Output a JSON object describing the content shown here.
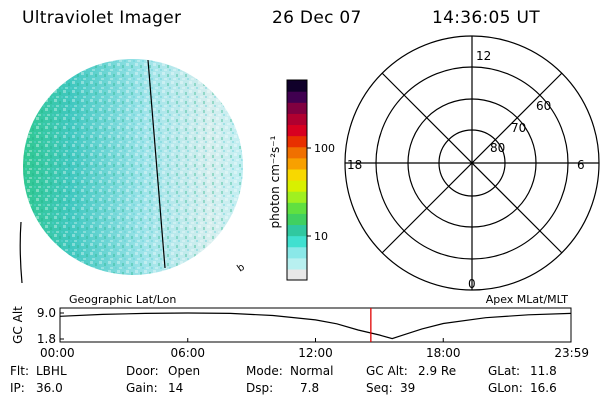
{
  "header": {
    "title": "Ultraviolet Imager",
    "date": "26 Dec 07",
    "time": "14:36:05 UT"
  },
  "colorbar": {
    "unit_label": "photon cm⁻²s⁻¹",
    "tick_high": "100",
    "tick_low": "10",
    "colors": [
      "#e8e8e8",
      "#b8f0f0",
      "#8ae8e8",
      "#40e0d0",
      "#30c8a0",
      "#40d060",
      "#60e040",
      "#a0f020",
      "#d8f000",
      "#f8d800",
      "#f8a000",
      "#f07000",
      "#e83000",
      "#d80020",
      "#b00030",
      "#800040",
      "#400050",
      "#10002a"
    ]
  },
  "left_panel": {
    "projection_label": "Geographic Lat/Lon",
    "corner_mark": "b"
  },
  "polar_plot": {
    "projection_label": "Apex  MLat/MLT",
    "mlt_labels": {
      "top": "12",
      "left": "18",
      "right": "6",
      "bottom": "0"
    },
    "lat_labels": [
      "60",
      "70",
      "80"
    ]
  },
  "chart_data": {
    "type": "line",
    "title": "GC Alt",
    "ylabel": "GC Alt",
    "y_ticks": [
      "9.0",
      "1.8"
    ],
    "ylim": [
      1.8,
      9.0
    ],
    "x_ticks": [
      "00:00",
      "06:00",
      "12:00",
      "18:00",
      "23:59"
    ],
    "xlim_hours": [
      0,
      24
    ],
    "series": [
      {
        "name": "GC Alt",
        "x_hours": [
          0,
          2,
          4,
          6,
          8,
          10,
          12,
          13,
          14,
          15,
          15.6,
          16,
          17,
          18,
          20,
          22,
          24
        ],
        "values": [
          8.1,
          8.6,
          8.9,
          9.0,
          8.9,
          8.3,
          7.1,
          6.0,
          4.3,
          2.9,
          1.9,
          2.7,
          4.6,
          6.1,
          7.7,
          8.5,
          8.9
        ]
      }
    ],
    "marker_hour": 14.6
  },
  "info": {
    "flt_label": "Flt:",
    "flt_value": "LBHL",
    "ip_label": "IP:",
    "ip_value": "36.0",
    "door_label": "Door:",
    "door_value": "Open",
    "gain_label": "Gain:",
    "gain_value": "14",
    "mode_label": "Mode:",
    "mode_value": "Normal",
    "dsp_label": "Dsp:",
    "dsp_value": "7.8",
    "gcalt_label": "GC Alt:",
    "gcalt_value": "2.9 Re",
    "seq_label": "Seq:",
    "seq_value": "39",
    "glat_label": "GLat:",
    "glat_value": "11.8",
    "glon_label": "GLon:",
    "glon_value": "16.6"
  }
}
